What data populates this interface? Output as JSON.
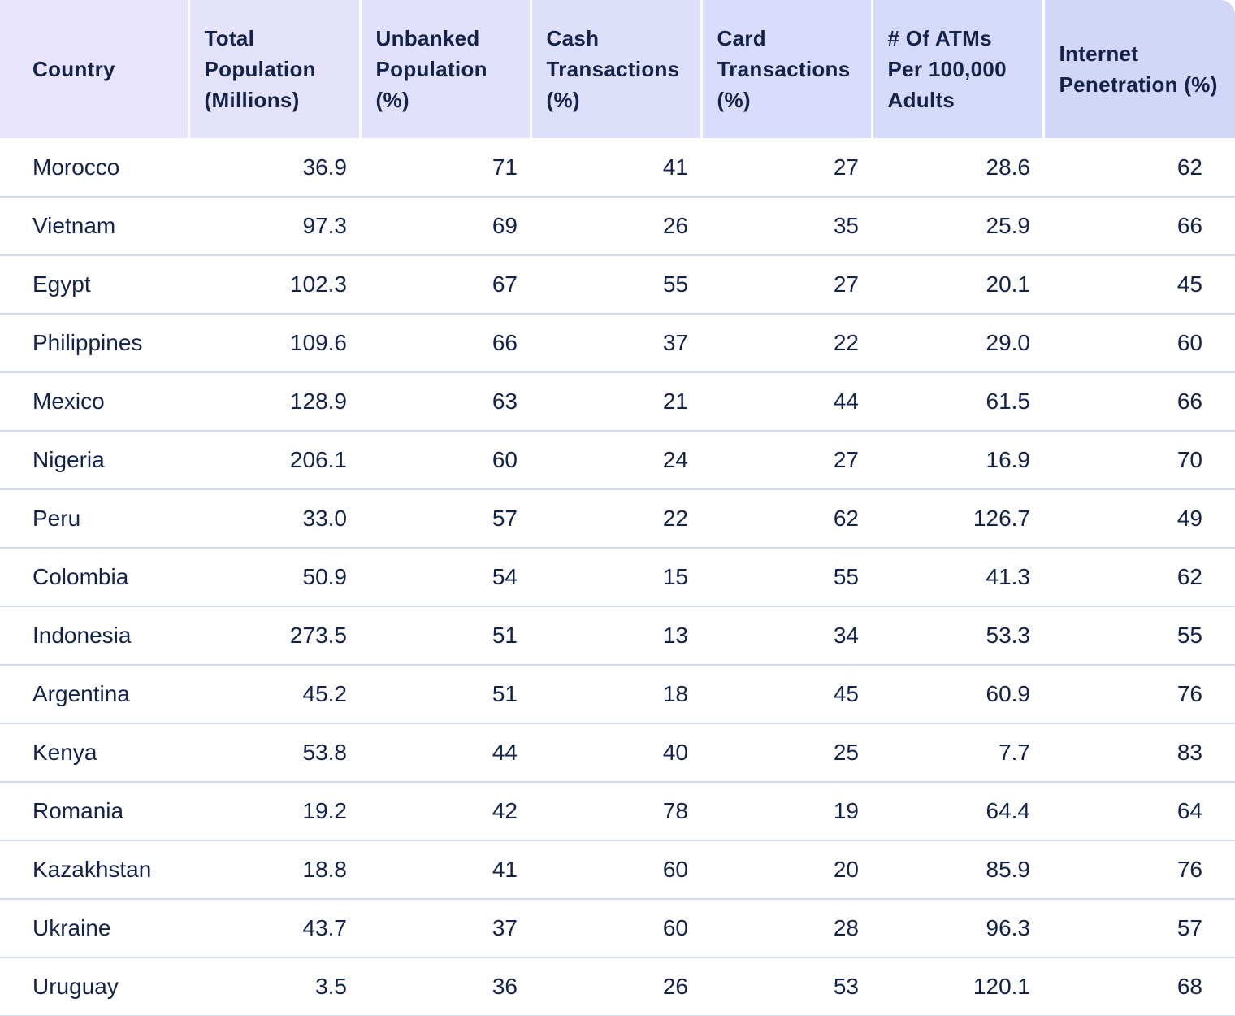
{
  "table": {
    "headers": [
      "Country",
      "Total Population (Millions)",
      "Unbanked Population (%)",
      "Cash Transactions (%)",
      "Card Transactions (%)",
      "# Of ATMs Per 100,000 Adults",
      "Internet Penetration (%)"
    ],
    "rows": [
      [
        "Morocco",
        "36.9",
        "71",
        "41",
        "27",
        "28.6",
        "62"
      ],
      [
        "Vietnam",
        "97.3",
        "69",
        "26",
        "35",
        "25.9",
        "66"
      ],
      [
        "Egypt",
        "102.3",
        "67",
        "55",
        "27",
        "20.1",
        "45"
      ],
      [
        "Philippines",
        "109.6",
        "66",
        "37",
        "22",
        "29.0",
        "60"
      ],
      [
        "Mexico",
        "128.9",
        "63",
        "21",
        "44",
        "61.5",
        "66"
      ],
      [
        "Nigeria",
        "206.1",
        "60",
        "24",
        "27",
        "16.9",
        "70"
      ],
      [
        "Peru",
        "33.0",
        "57",
        "22",
        "62",
        "126.7",
        "49"
      ],
      [
        "Colombia",
        "50.9",
        "54",
        "15",
        "55",
        "41.3",
        "62"
      ],
      [
        "Indonesia",
        "273.5",
        "51",
        "13",
        "34",
        "53.3",
        "55"
      ],
      [
        "Argentina",
        "45.2",
        "51",
        "18",
        "45",
        "60.9",
        "76"
      ],
      [
        "Kenya",
        "53.8",
        "44",
        "40",
        "25",
        "7.7",
        "83"
      ],
      [
        "Romania",
        "19.2",
        "42",
        "78",
        "19",
        "64.4",
        "64"
      ],
      [
        "Kazakhstan",
        "18.8",
        "41",
        "60",
        "20",
        "85.9",
        "76"
      ],
      [
        "Ukraine",
        "43.7",
        "37",
        "60",
        "28",
        "96.3",
        "57"
      ],
      [
        "Uruguay",
        "3.5",
        "36",
        "26",
        "53",
        "120.1",
        "68"
      ]
    ]
  },
  "colors": {
    "header_start": "#e8e4fb",
    "header_end": "#d2d7f8",
    "row_divider": "#c9dcf3",
    "text": "#13224a"
  }
}
